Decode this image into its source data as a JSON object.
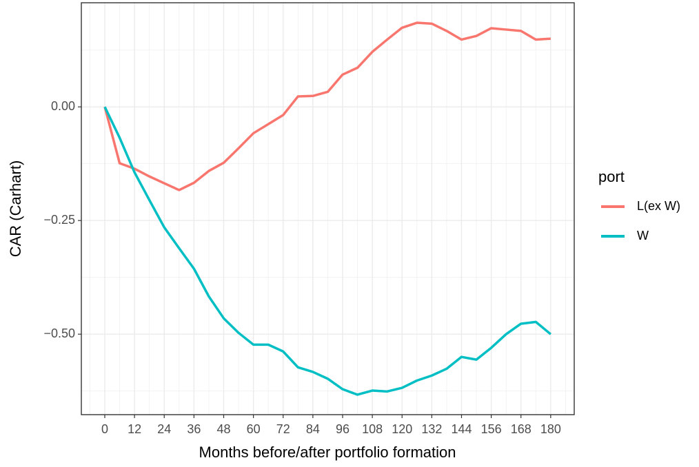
{
  "chart_data": {
    "type": "line",
    "x_label": "Months before/after portfolio formation",
    "y_label": "CAR (Carhart)",
    "legend_title": "port",
    "x": [
      0,
      6,
      12,
      18,
      24,
      30,
      36,
      42,
      48,
      54,
      60,
      66,
      72,
      78,
      84,
      90,
      96,
      102,
      108,
      114,
      120,
      126,
      132,
      138,
      144,
      150,
      156,
      162,
      168,
      174,
      180
    ],
    "series": [
      {
        "name": "L(ex W)",
        "color": "#F8766D",
        "values": [
          0,
          -0.124,
          -0.136,
          -0.153,
          -0.168,
          -0.183,
          -0.167,
          -0.141,
          -0.123,
          -0.091,
          -0.058,
          -0.038,
          -0.018,
          0.023,
          0.024,
          0.033,
          0.071,
          0.086,
          0.121,
          0.148,
          0.174,
          0.185,
          0.183,
          0.167,
          0.148,
          0.156,
          0.173,
          0.17,
          0.167,
          0.148,
          0.15
        ]
      },
      {
        "name": "W",
        "color": "#00BFC4",
        "values": [
          0,
          -0.068,
          -0.144,
          -0.205,
          -0.265,
          -0.311,
          -0.356,
          -0.417,
          -0.465,
          -0.497,
          -0.523,
          -0.523,
          -0.538,
          -0.573,
          -0.583,
          -0.598,
          -0.621,
          -0.633,
          -0.624,
          -0.626,
          -0.618,
          -0.602,
          -0.591,
          -0.576,
          -0.55,
          -0.556,
          -0.53,
          -0.5,
          -0.477,
          -0.473,
          -0.5
        ]
      }
    ],
    "xlim": [
      -9.46,
      189.5
    ],
    "ylim": [
      -0.677,
      0.229
    ],
    "xticks": [
      0,
      12,
      24,
      36,
      48,
      60,
      72,
      84,
      96,
      108,
      120,
      132,
      144,
      156,
      168,
      180
    ],
    "yticks": [
      {
        "value": -0.5,
        "label": "−0.50"
      },
      {
        "value": -0.25,
        "label": "−0.25"
      },
      {
        "value": 0,
        "label": "0.00"
      }
    ],
    "grid": true
  }
}
